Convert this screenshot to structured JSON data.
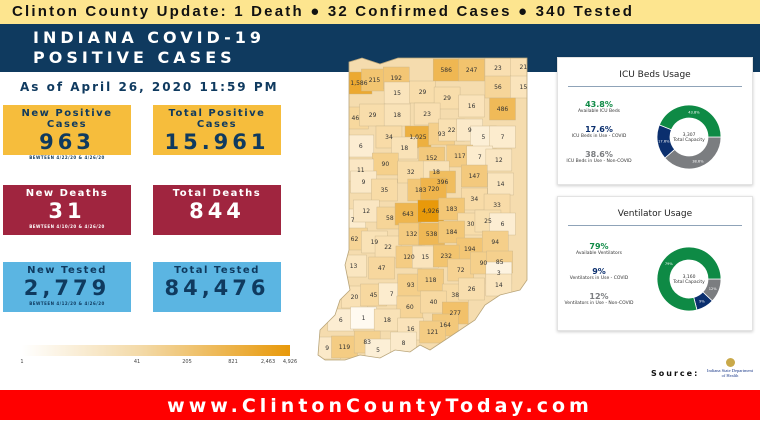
{
  "banner": "Clinton County Update: 1 Death ● 32 Confirmed Cases ● 340 Tested",
  "title": {
    "line1": "INDIANA COVID-19",
    "line2": "POSITIVE CASES"
  },
  "as_of": "As of April 26, 2020 11:59 PM",
  "stats": [
    {
      "label": "New Positive Cases",
      "value": "963",
      "sub": "BEWTEEN 4/22/20 & 4/26/20"
    },
    {
      "label": "Total Positive Cases",
      "value": "15.961"
    },
    {
      "label": "New Deaths",
      "value": "31",
      "sub": "BEWTEEN 4/10/20 & 4/26/20"
    },
    {
      "label": "Total Deaths",
      "value": "844"
    },
    {
      "label": "New Tested",
      "value": "2,779",
      "sub": "BEWTEEN 4/12/20 & 4/26/20"
    },
    {
      "label": "Total Tested",
      "value": "84,476"
    }
  ],
  "colors": {
    "yellow": "#f6bd3c",
    "red": "#a0253f",
    "blue": "#5bb5e2",
    "navy": "#0f3a5f",
    "green": "#0e8a45",
    "dark_blue": "#0b2f6e",
    "gray": "#7b7d80",
    "scale_max": "#e8990a"
  },
  "scale": {
    "ticks": [
      "1",
      "41",
      "205",
      "821",
      "2,463",
      "4,926"
    ]
  },
  "county_cases": [
    1586,
    215,
    192,
    586,
    247,
    23,
    21,
    15,
    29,
    29,
    56,
    15,
    46,
    29,
    18,
    23,
    16,
    486,
    6,
    34,
    1025,
    93,
    22,
    9,
    5,
    7,
    18,
    152,
    117,
    7,
    12,
    90,
    11,
    9,
    32,
    18,
    396,
    147,
    14,
    35,
    183,
    720,
    34,
    33,
    7,
    12,
    58,
    643,
    4926,
    183,
    30,
    25,
    6,
    62,
    19,
    22,
    132,
    538,
    184,
    194,
    94,
    13,
    47,
    120,
    15,
    232,
    72,
    90,
    85,
    3,
    14,
    20,
    45,
    7,
    93,
    118,
    38,
    26,
    60,
    40,
    277,
    6,
    1,
    18,
    16,
    164,
    121,
    9,
    119,
    83,
    5,
    8
  ],
  "icu": {
    "title": "ICU Beds Usage",
    "total": "3,307",
    "total_label": "Total Capacity",
    "items": [
      {
        "pct": "43.8%",
        "value": 43.8,
        "label": "Available ICU Beds",
        "color": "#0e8a45"
      },
      {
        "pct": "17.6%",
        "value": 17.6,
        "label": "ICU Beds in Use - COVID",
        "color": "#0b2f6e"
      },
      {
        "pct": "38.6%",
        "value": 38.6,
        "label": "ICU Beds in Use - Non-COVID",
        "color": "#7b7d80"
      }
    ]
  },
  "vent": {
    "title": "Ventilator Usage",
    "total": "3,160",
    "total_label": "Total Capacity",
    "items": [
      {
        "pct": "79%",
        "value": 79,
        "label": "Available Ventilators",
        "color": "#0e8a45"
      },
      {
        "pct": "9%",
        "value": 9,
        "label": "Ventilators in Use - COVID",
        "color": "#0b2f6e"
      },
      {
        "pct": "12%",
        "value": 12,
        "label": "Ventilators in Use - Non-COVID",
        "color": "#7b7d80"
      }
    ]
  },
  "source": {
    "label": "Source:",
    "logo_text": "Indiana State Department of Health"
  },
  "footer": "www.ClintonCountyToday.com"
}
